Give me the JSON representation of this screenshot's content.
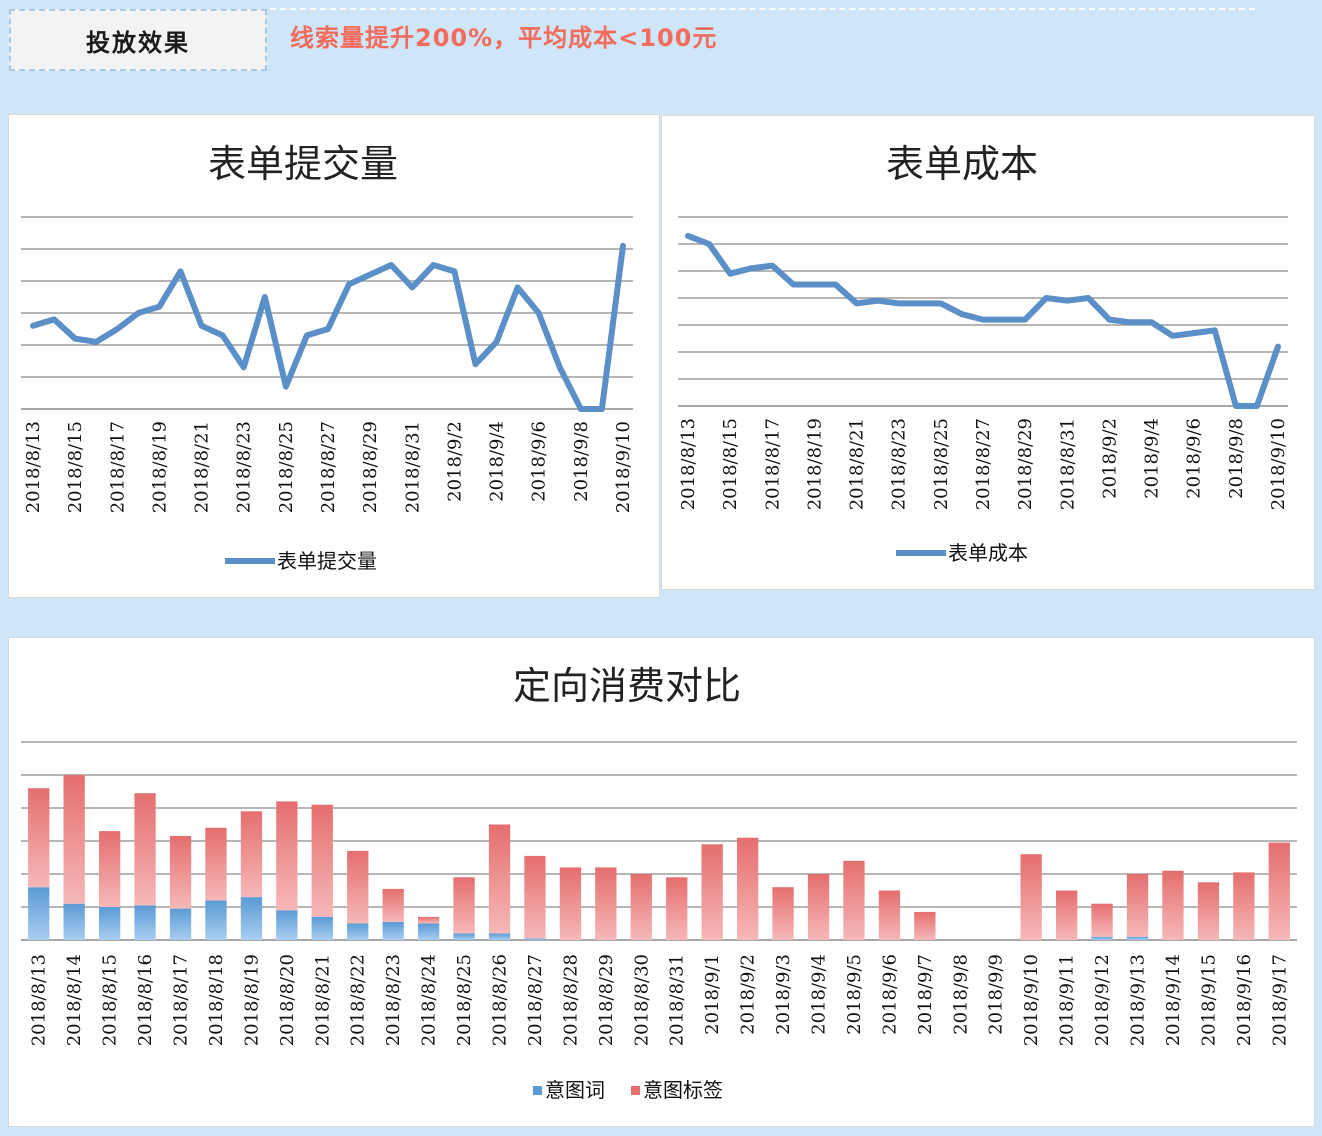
{
  "header": {
    "tag_label": "投放效果",
    "headline": "线索量提升200%，平均成本<100元"
  },
  "colors": {
    "line": "#5b8fc8",
    "bar_word": "#5b9bd5",
    "bar_tag": "#e56e6e",
    "headline": "#f26b5b",
    "grid": "#8a8a8a"
  },
  "chart_data": [
    {
      "type": "line",
      "title": "表单提交量",
      "legend": "表单提交量",
      "legend_position": "bottom",
      "grid": true,
      "x": [
        "2018/8/13",
        "2018/8/14",
        "2018/8/15",
        "2018/8/16",
        "2018/8/17",
        "2018/8/18",
        "2018/8/19",
        "2018/8/20",
        "2018/8/21",
        "2018/8/22",
        "2018/8/23",
        "2018/8/24",
        "2018/8/25",
        "2018/8/26",
        "2018/8/27",
        "2018/8/28",
        "2018/8/29",
        "2018/8/30",
        "2018/8/31",
        "2018/9/1",
        "2018/9/2",
        "2018/9/3",
        "2018/9/4",
        "2018/9/5",
        "2018/9/6",
        "2018/9/7",
        "2018/9/8",
        "2018/9/9",
        "2018/9/10"
      ],
      "x_ticks": [
        "2018/8/13",
        "2018/8/15",
        "2018/8/17",
        "2018/8/19",
        "2018/8/21",
        "2018/8/23",
        "2018/8/25",
        "2018/8/27",
        "2018/8/29",
        "2018/8/31",
        "2018/9/2",
        "2018/9/4",
        "2018/9/6",
        "2018/9/8",
        "2018/9/10"
      ],
      "values": [
        2.6,
        2.8,
        2.2,
        2.1,
        2.5,
        3.0,
        3.2,
        4.3,
        2.6,
        2.3,
        1.3,
        3.5,
        0.7,
        2.3,
        2.5,
        3.9,
        4.2,
        4.5,
        3.8,
        4.5,
        4.3,
        1.4,
        2.1,
        3.8,
        3.0,
        1.3,
        0,
        0,
        5.1
      ],
      "ylim": [
        0,
        6
      ]
    },
    {
      "type": "line",
      "title": "表单成本",
      "legend": "表单成本",
      "legend_position": "bottom",
      "grid": true,
      "x": [
        "2018/8/13",
        "2018/8/14",
        "2018/8/15",
        "2018/8/16",
        "2018/8/17",
        "2018/8/18",
        "2018/8/19",
        "2018/8/20",
        "2018/8/21",
        "2018/8/22",
        "2018/8/23",
        "2018/8/24",
        "2018/8/25",
        "2018/8/26",
        "2018/8/27",
        "2018/8/28",
        "2018/8/29",
        "2018/8/30",
        "2018/8/31",
        "2018/9/1",
        "2018/9/2",
        "2018/9/3",
        "2018/9/4",
        "2018/9/5",
        "2018/9/6",
        "2018/9/7",
        "2018/9/8",
        "2018/9/9",
        "2018/9/10"
      ],
      "x_ticks": [
        "2018/8/13",
        "2018/8/15",
        "2018/8/17",
        "2018/8/19",
        "2018/8/21",
        "2018/8/23",
        "2018/8/25",
        "2018/8/27",
        "2018/8/29",
        "2018/8/31",
        "2018/9/2",
        "2018/9/4",
        "2018/9/6",
        "2018/9/8",
        "2018/9/10"
      ],
      "values": [
        6.3,
        6.0,
        4.9,
        5.1,
        5.2,
        4.5,
        4.5,
        4.5,
        3.8,
        3.9,
        3.8,
        3.8,
        3.8,
        3.4,
        3.2,
        3.2,
        3.2,
        4.0,
        3.9,
        4.0,
        3.2,
        3.1,
        3.1,
        2.6,
        2.7,
        2.8,
        0,
        0,
        2.2
      ],
      "ylim": [
        0,
        7
      ]
    },
    {
      "type": "bar",
      "stacked": true,
      "title": "定向消费对比",
      "legend_position": "bottom",
      "grid": true,
      "categories": [
        "2018/8/13",
        "2018/8/14",
        "2018/8/15",
        "2018/8/16",
        "2018/8/17",
        "2018/8/18",
        "2018/8/19",
        "2018/8/20",
        "2018/8/21",
        "2018/8/22",
        "2018/8/23",
        "2018/8/24",
        "2018/8/25",
        "2018/8/26",
        "2018/8/27",
        "2018/8/28",
        "2018/8/29",
        "2018/8/30",
        "2018/8/31",
        "2018/9/1",
        "2018/9/2",
        "2018/9/3",
        "2018/9/4",
        "2018/9/5",
        "2018/9/6",
        "2018/9/7",
        "2018/9/8",
        "2018/9/9",
        "2018/9/10",
        "2018/9/11",
        "2018/9/12",
        "2018/9/13",
        "2018/9/14",
        "2018/9/15",
        "2018/9/16",
        "2018/9/17"
      ],
      "series": [
        {
          "name": "意图词",
          "values": [
            1.6,
            1.1,
            1.0,
            1.05,
            0.95,
            1.2,
            1.3,
            0.9,
            0.7,
            0.5,
            0.55,
            0.5,
            0.2,
            0.2,
            0.05,
            0,
            0,
            0,
            0,
            0,
            0,
            0,
            0,
            0,
            0,
            0,
            0,
            0,
            0,
            0,
            0.1,
            0.1,
            0,
            0,
            0,
            0
          ]
        },
        {
          "name": "意图标签",
          "values": [
            3.0,
            3.9,
            2.3,
            3.4,
            2.2,
            2.2,
            2.6,
            3.3,
            3.4,
            2.2,
            1.0,
            0.2,
            1.7,
            3.3,
            2.5,
            2.2,
            2.2,
            2.0,
            1.9,
            2.9,
            3.1,
            1.6,
            2.0,
            2.4,
            1.5,
            0.85,
            0,
            0,
            2.6,
            1.5,
            1.0,
            1.9,
            2.1,
            1.75,
            2.05,
            2.95
          ]
        }
      ],
      "ylim": [
        0,
        6
      ]
    }
  ]
}
